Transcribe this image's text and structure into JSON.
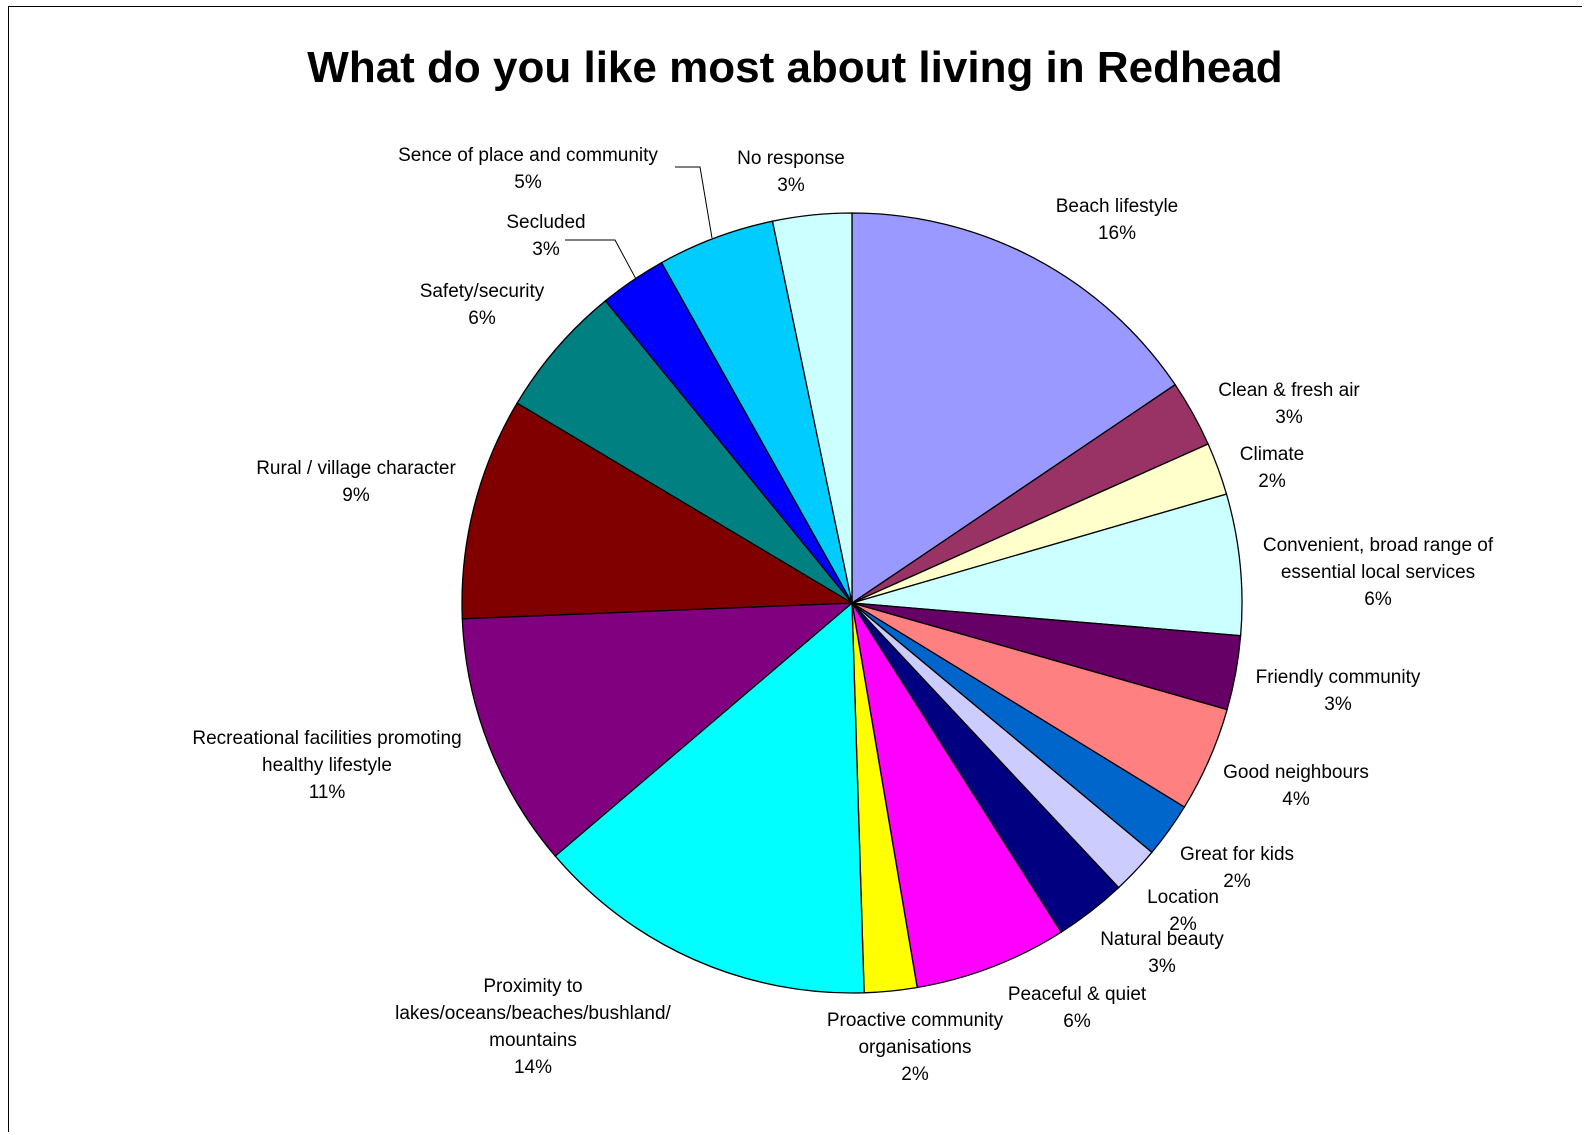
{
  "chart_data": {
    "type": "pie",
    "title": "What do you like most about living in Redhead",
    "start": "12 o'clock",
    "direction": "clockwise",
    "slices": [
      {
        "label": [
          "Beach lifestyle"
        ],
        "pct_label": "16%",
        "value": 15.7,
        "color": "#9999ff"
      },
      {
        "label": [
          "Clean & fresh air"
        ],
        "pct_label": "3%",
        "value": 2.8,
        "color": "#993366"
      },
      {
        "label": [
          "Climate"
        ],
        "pct_label": "2%",
        "value": 2.2,
        "color": "#ffffcc"
      },
      {
        "label": [
          "Convenient, broad range of",
          "essential local services"
        ],
        "pct_label": "6%",
        "value": 5.9,
        "color": "#ccffff"
      },
      {
        "label": [
          "Friendly community"
        ],
        "pct_label": "3%",
        "value": 3.1,
        "color": "#660066"
      },
      {
        "label": [
          "Good neighbours"
        ],
        "pct_label": "4%",
        "value": 4.4,
        "color": "#ff8080"
      },
      {
        "label": [
          "Great for kids"
        ],
        "pct_label": "2%",
        "value": 2.3,
        "color": "#0066cc"
      },
      {
        "label": [
          "Location"
        ],
        "pct_label": "2%",
        "value": 2.0,
        "color": "#ccccff"
      },
      {
        "label": [
          "Natural beauty"
        ],
        "pct_label": "3%",
        "value": 3.0,
        "color": "#000080"
      },
      {
        "label": [
          "Peaceful & quiet"
        ],
        "pct_label": "6%",
        "value": 6.4,
        "color": "#ff00ff"
      },
      {
        "label": [
          "Proactive community",
          "organisations"
        ],
        "pct_label": "2%",
        "value": 2.2,
        "color": "#ffff00"
      },
      {
        "label": [
          "Proximity to",
          "lakes/oceans/beaches/bushland/",
          "mountains"
        ],
        "pct_label": "14%",
        "value": 14.4,
        "color": "#00ffff"
      },
      {
        "label": [
          "Recreational facilities promoting",
          "healthy lifestyle"
        ],
        "pct_label": "11%",
        "value": 10.7,
        "color": "#800080"
      },
      {
        "label": [
          "Rural / village character"
        ],
        "pct_label": "9%",
        "value": 9.3,
        "color": "#800000"
      },
      {
        "label": [
          "Safety/security"
        ],
        "pct_label": "6%",
        "value": 5.6,
        "color": "#008080"
      },
      {
        "label": [
          "Secluded"
        ],
        "pct_label": "3%",
        "value": 2.8,
        "color": "#0000ff"
      },
      {
        "label": [
          "Sence of place and community"
        ],
        "pct_label": "5%",
        "value": 4.9,
        "color": "#00ccff"
      },
      {
        "label": [
          "No response"
        ],
        "pct_label": "3%",
        "value": 3.3,
        "color": "#ccffff"
      }
    ]
  }
}
